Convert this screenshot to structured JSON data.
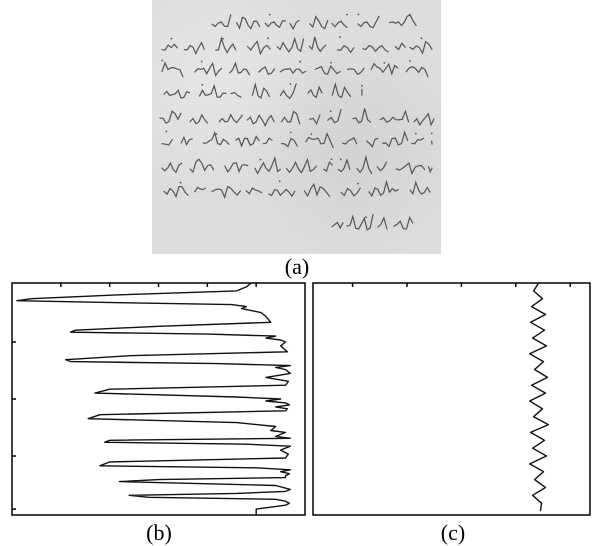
{
  "figure": {
    "captions": {
      "a": "(a)",
      "b": "(b)",
      "c": "(c)"
    }
  },
  "chart_data": [
    {
      "type": "line",
      "panel": "b",
      "orientation": "vertical",
      "title": "",
      "xlabel": "",
      "ylabel": "",
      "xlim": [
        0,
        300
      ],
      "ylim": [
        0,
        236
      ],
      "grid": false,
      "series": [
        {
          "y": [
            0,
            4,
            8,
            12,
            16,
            18,
            20,
            22,
            24,
            26,
            30,
            34,
            40,
            44,
            48,
            50,
            52,
            54,
            56,
            58,
            60,
            64,
            70,
            74,
            78,
            80,
            82,
            84,
            86,
            88,
            92,
            96,
            100,
            104,
            108,
            112,
            116,
            118,
            120,
            122,
            124,
            126,
            128,
            130,
            134,
            138,
            142,
            146,
            150,
            152,
            154,
            156,
            158,
            160,
            162,
            164,
            166,
            170,
            174,
            178,
            182,
            186,
            188,
            190,
            192,
            194,
            196,
            198,
            200,
            202,
            206,
            210,
            212,
            214,
            216,
            218,
            220,
            222,
            224,
            226,
            230,
            236
          ],
          "x": [
            245,
            240,
            230,
            110,
            20,
            5,
            110,
            225,
            240,
            235,
            255,
            260,
            265,
            150,
            65,
            60,
            200,
            270,
            260,
            275,
            280,
            275,
            282,
            120,
            55,
            60,
            210,
            285,
            270,
            280,
            285,
            260,
            283,
            280,
            100,
            85,
            230,
            275,
            260,
            280,
            284,
            270,
            282,
            280,
            90,
            78,
            230,
            270,
            265,
            280,
            275,
            270,
            285,
            100,
            95,
            240,
            285,
            275,
            283,
            280,
            100,
            90,
            250,
            285,
            275,
            284,
            280,
            280,
            150,
            110,
            270,
            285,
            280,
            230,
            120,
            140,
            270,
            280,
            284,
            280,
            250,
            250
          ]
        }
      ]
    },
    {
      "type": "line",
      "panel": "c",
      "orientation": "vertical",
      "title": "",
      "xlabel": "",
      "ylabel": "",
      "xlim": [
        0,
        280
      ],
      "ylim": [
        0,
        236
      ],
      "grid": false,
      "series": [
        {
          "y": [
            0,
            8,
            16,
            24,
            32,
            40,
            48,
            56,
            64,
            72,
            80,
            88,
            96,
            104,
            112,
            120,
            128,
            136,
            144,
            152,
            160,
            168,
            176,
            184,
            192,
            200,
            208,
            216,
            224,
            232
          ],
          "x": [
            228,
            223,
            232,
            221,
            235,
            220,
            234,
            222,
            236,
            219,
            233,
            224,
            237,
            221,
            235,
            219,
            232,
            223,
            238,
            220,
            234,
            222,
            236,
            219,
            233,
            224,
            235,
            222,
            231,
            230
          ]
        }
      ]
    }
  ]
}
